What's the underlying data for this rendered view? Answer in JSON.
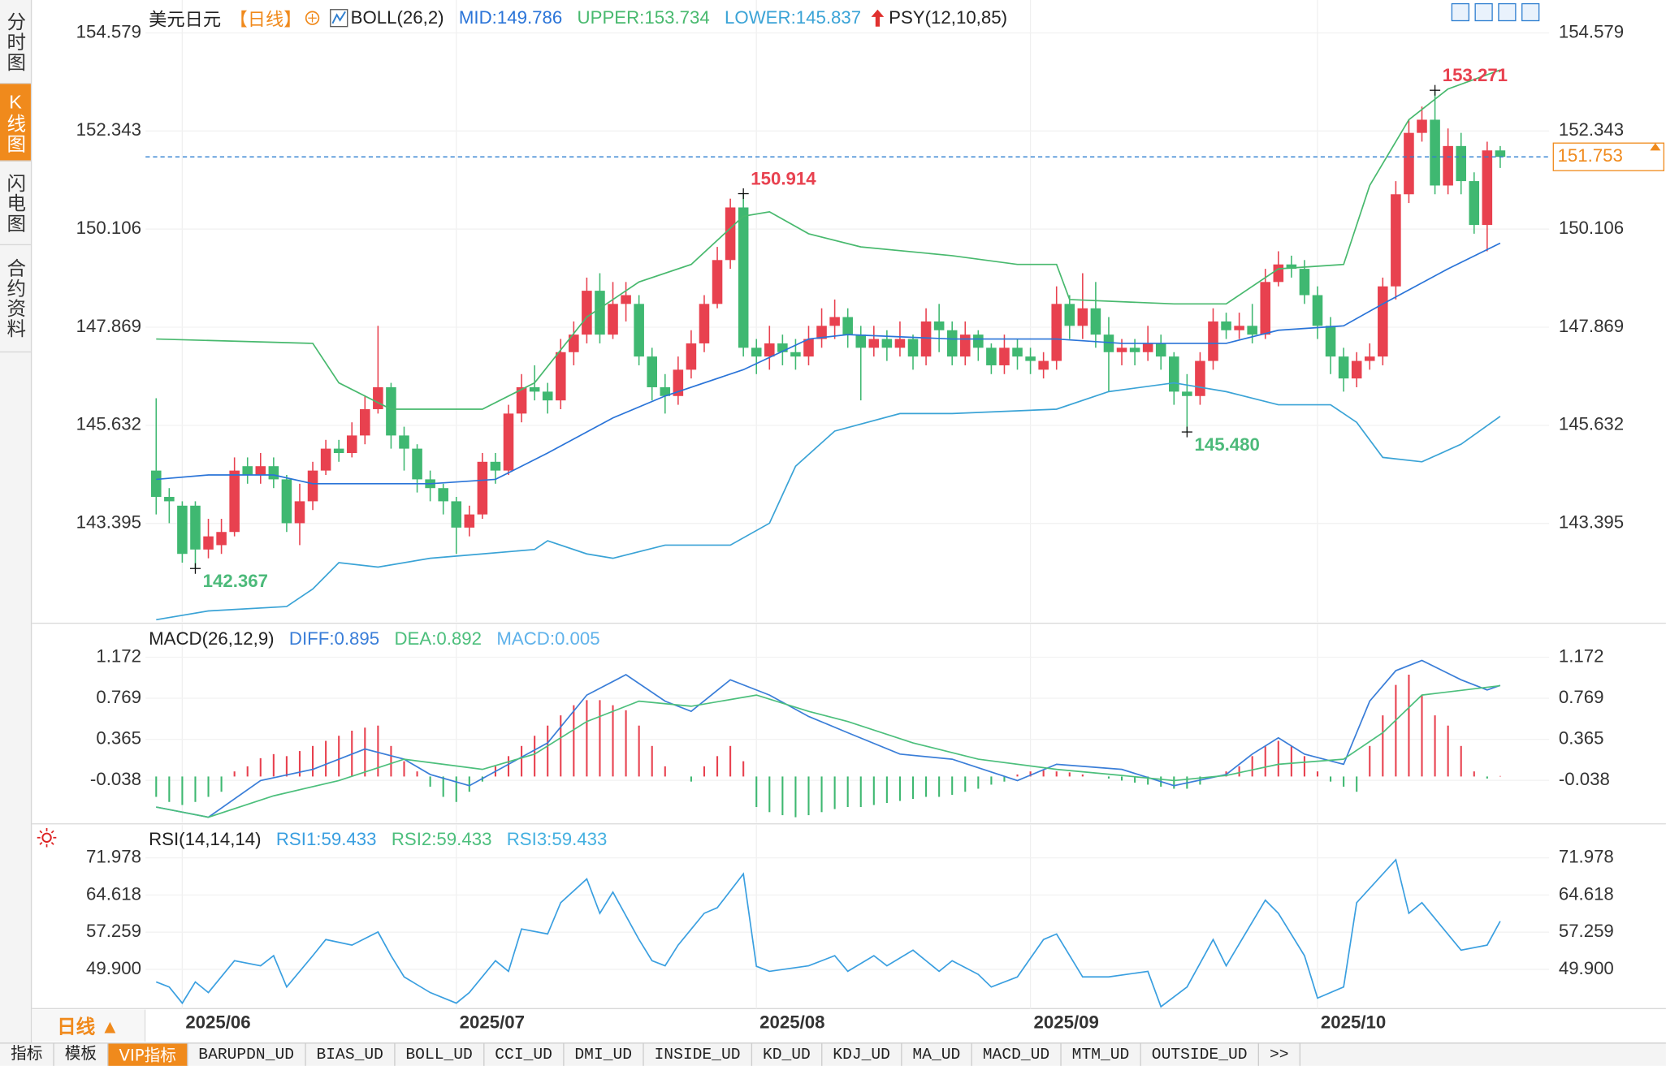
{
  "ui": {
    "sidebar_tabs": [
      "分时图",
      "K线图",
      "闪电图",
      "合约资料"
    ],
    "period_button": "日线 ▲",
    "bottom_tabs": [
      "指标",
      "模板",
      "VIP指标",
      "BARUPDN_UD",
      "BIAS_UD",
      "BOLL_UD",
      "CCI_UD",
      "DMI_UD",
      "INSIDE_UD",
      "KD_UD",
      "KDJ_UD",
      "MA_UD",
      "MACD_UD",
      "MTM_UD",
      "OUTSIDE_UD",
      ">>"
    ]
  },
  "chart_data": [
    {
      "type": "candlestick",
      "title": "美元日元",
      "period": "【日线】",
      "indicator": "BOLL(26,2)",
      "extra_indicator": "PSY(12,10,85)",
      "xlim": [
        0,
        103
      ],
      "ylim": [
        141.168,
        154.579
      ],
      "yticks": [
        154.579,
        152.343,
        150.106,
        147.869,
        145.632,
        143.395
      ],
      "up_color": "#e8414f",
      "down_color": "#3fb871",
      "candles": {
        "open": [
          144.6,
          144.0,
          143.8,
          143.8,
          142.8,
          142.9,
          143.2,
          144.7,
          144.5,
          144.7,
          144.4,
          143.4,
          143.9,
          144.6,
          145.1,
          145.0,
          145.4,
          146.0,
          146.5,
          145.4,
          145.1,
          144.4,
          144.2,
          143.9,
          143.3,
          143.6,
          144.8,
          144.6,
          145.9,
          146.5,
          146.4,
          146.2,
          147.3,
          147.7,
          148.7,
          147.7,
          148.4,
          148.4,
          147.2,
          146.5,
          146.3,
          146.9,
          147.5,
          148.4,
          149.4,
          150.6,
          147.4,
          147.2,
          147.5,
          147.3,
          147.2,
          147.6,
          147.9,
          148.1,
          147.7,
          147.4,
          147.6,
          147.4,
          147.6,
          147.2,
          148.0,
          147.8,
          147.2,
          147.7,
          147.4,
          147.0,
          147.4,
          147.2,
          146.9,
          147.1,
          148.4,
          147.9,
          148.3,
          147.7,
          147.3,
          147.4,
          147.3,
          147.5,
          147.2,
          146.4,
          146.3,
          147.1,
          148.0,
          147.8,
          147.9,
          147.7,
          148.9,
          149.3,
          149.2,
          148.6,
          147.9,
          147.2,
          146.7,
          147.1,
          147.2,
          148.8,
          150.9,
          152.3,
          152.6,
          151.1,
          152.0,
          151.2,
          150.2,
          151.9
        ],
        "high": [
          146.25,
          144.2,
          143.9,
          143.9,
          143.5,
          143.5,
          144.9,
          144.9,
          145.0,
          144.9,
          144.5,
          144.3,
          144.8,
          145.3,
          145.3,
          145.7,
          146.3,
          147.9,
          146.6,
          145.6,
          145.2,
          144.6,
          144.3,
          144.0,
          143.8,
          145.0,
          145.0,
          146.1,
          146.8,
          147.0,
          146.6,
          147.6,
          148.0,
          149.0,
          149.1,
          148.9,
          148.9,
          148.6,
          147.4,
          146.8,
          147.2,
          147.8,
          148.6,
          149.7,
          150.8,
          150.914,
          147.6,
          147.9,
          147.7,
          147.6,
          147.9,
          148.3,
          148.5,
          148.3,
          147.9,
          147.9,
          147.8,
          148.0,
          147.7,
          148.3,
          148.4,
          148.0,
          148.0,
          147.8,
          147.5,
          147.7,
          147.6,
          147.4,
          147.3,
          148.8,
          148.6,
          149.1,
          148.9,
          148.1,
          147.6,
          147.6,
          147.9,
          147.7,
          147.3,
          146.8,
          147.3,
          148.3,
          148.2,
          148.2,
          148.4,
          149.2,
          149.6,
          149.5,
          149.4,
          148.8,
          148.1,
          147.4,
          147.3,
          147.5,
          149.0,
          151.2,
          152.6,
          152.9,
          153.271,
          152.4,
          152.3,
          151.4,
          152.1,
          152.0
        ],
        "low": [
          143.6,
          143.4,
          142.5,
          142.367,
          142.6,
          142.7,
          143.1,
          144.3,
          144.3,
          144.2,
          143.2,
          142.9,
          143.7,
          144.5,
          144.8,
          144.9,
          145.2,
          145.9,
          145.1,
          144.6,
          144.1,
          143.9,
          143.6,
          142.7,
          143.1,
          143.5,
          144.3,
          144.5,
          145.7,
          146.2,
          145.9,
          146.0,
          147.0,
          147.5,
          147.5,
          147.6,
          148.0,
          147.0,
          146.2,
          145.9,
          146.1,
          146.7,
          147.3,
          148.3,
          149.2,
          147.2,
          146.8,
          146.9,
          147.0,
          146.9,
          147.0,
          147.4,
          147.6,
          147.4,
          146.2,
          147.2,
          147.1,
          147.2,
          146.9,
          147.0,
          147.3,
          147.0,
          147.0,
          147.1,
          146.8,
          146.8,
          146.9,
          146.8,
          146.7,
          146.9,
          147.6,
          147.6,
          147.4,
          146.4,
          147.0,
          147.0,
          147.1,
          146.9,
          146.1,
          145.48,
          146.1,
          146.9,
          147.6,
          147.6,
          147.5,
          147.6,
          148.8,
          149.0,
          148.4,
          147.6,
          146.8,
          146.4,
          146.5,
          146.9,
          147.0,
          148.5,
          150.7,
          152.1,
          150.9,
          150.9,
          150.9,
          150.0,
          149.6,
          151.5
        ],
        "close": [
          144.0,
          143.9,
          142.7,
          142.8,
          143.1,
          143.2,
          144.6,
          144.5,
          144.7,
          144.4,
          143.4,
          143.9,
          144.6,
          145.1,
          145.0,
          145.4,
          146.0,
          146.5,
          145.4,
          145.1,
          144.4,
          144.2,
          143.9,
          143.3,
          143.6,
          144.8,
          144.6,
          145.9,
          146.5,
          146.4,
          146.2,
          147.3,
          147.7,
          148.7,
          147.7,
          148.4,
          148.6,
          147.2,
          146.5,
          146.3,
          146.9,
          147.5,
          148.4,
          149.4,
          150.6,
          147.4,
          147.2,
          147.5,
          147.3,
          147.2,
          147.6,
          147.9,
          148.1,
          147.7,
          147.4,
          147.6,
          147.4,
          147.6,
          147.2,
          148.0,
          147.8,
          147.2,
          147.7,
          147.4,
          147.0,
          147.4,
          147.2,
          147.1,
          147.1,
          148.4,
          147.9,
          148.3,
          147.7,
          147.3,
          147.4,
          147.3,
          147.5,
          147.2,
          146.4,
          146.3,
          147.1,
          148.0,
          147.8,
          147.9,
          147.7,
          148.9,
          149.3,
          149.2,
          148.6,
          147.9,
          147.2,
          146.7,
          147.1,
          147.2,
          148.8,
          150.9,
          152.3,
          152.6,
          151.1,
          152.0,
          151.2,
          150.2,
          151.9,
          151.753
        ]
      },
      "series": [
        {
          "name": "MID:149.786",
          "color": "#2a74d8",
          "x": [
            0,
            4,
            9,
            12,
            17,
            21,
            26,
            30,
            35,
            39,
            45,
            50,
            53,
            61,
            69,
            74,
            78,
            82,
            86,
            91,
            94,
            99,
            103
          ],
          "values": [
            144.4,
            144.5,
            144.5,
            144.3,
            144.3,
            144.3,
            144.4,
            145.0,
            145.8,
            146.3,
            146.9,
            147.6,
            147.7,
            147.6,
            147.6,
            147.5,
            147.5,
            147.5,
            147.8,
            147.9,
            148.4,
            149.2,
            149.786
          ]
        },
        {
          "name": "UPPER:153.734",
          "color": "#48b96e",
          "x": [
            0,
            12,
            14,
            18,
            25,
            29,
            33,
            37,
            41,
            45,
            47,
            50,
            54,
            61,
            66,
            69,
            70,
            78,
            82,
            86,
            91,
            93,
            96,
            99,
            103
          ],
          "values": [
            147.6,
            147.5,
            146.6,
            146.0,
            146.0,
            146.6,
            148.1,
            148.9,
            149.3,
            150.4,
            150.5,
            150.0,
            149.7,
            149.5,
            149.3,
            149.3,
            148.5,
            148.4,
            148.4,
            149.2,
            149.3,
            151.1,
            152.6,
            153.3,
            153.734
          ]
        },
        {
          "name": "LOWER:145.837",
          "color": "#3aa3d6",
          "x": [
            0,
            4,
            10,
            12,
            14,
            17,
            21,
            25,
            29,
            30,
            33,
            35,
            39,
            44,
            47,
            49,
            52,
            57,
            61,
            69,
            73,
            78,
            82,
            86,
            90,
            92,
            94,
            97,
            100,
            103
          ],
          "values": [
            141.2,
            141.4,
            141.5,
            141.9,
            142.5,
            142.4,
            142.6,
            142.7,
            142.8,
            143.0,
            142.7,
            142.6,
            142.9,
            142.9,
            143.4,
            144.7,
            145.5,
            145.9,
            145.9,
            146.0,
            146.4,
            146.6,
            146.4,
            146.1,
            146.1,
            145.7,
            144.9,
            144.8,
            145.2,
            145.837
          ]
        }
      ],
      "annotations": [
        {
          "x": 45,
          "value": 150.914,
          "color": "#e8414f",
          "position": "above"
        },
        {
          "x": 3,
          "value": 142.367,
          "color": "#4cba7a",
          "position": "below"
        },
        {
          "x": 79,
          "value": 145.48,
          "label": "145.480",
          "color": "#4cba7a",
          "position": "below"
        },
        {
          "x": 98,
          "value": 153.271,
          "color": "#e8414f",
          "position": "above"
        }
      ],
      "last_price": 151.753,
      "last_price_color": "#f08a1c"
    },
    {
      "type": "combo",
      "title": "MACD(26,12,9)",
      "xlim": [
        0,
        103
      ],
      "ylim": [
        -0.455,
        1.172
      ],
      "yticks": [
        1.172,
        0.769,
        0.365,
        -0.038
      ],
      "series": [
        {
          "name": "DIFF:0.895",
          "color": "#3a7ed8",
          "x": [
            0,
            4,
            8,
            12,
            16,
            19,
            21,
            24,
            27,
            30,
            33,
            36,
            39,
            41,
            44,
            47,
            50,
            53,
            57,
            61,
            66,
            69,
            74,
            78,
            82,
            84,
            86,
            88,
            91,
            93,
            95,
            97,
            100,
            102,
            103
          ],
          "values": [
            -0.3,
            -0.4,
            -0.04,
            0.07,
            0.27,
            0.17,
            0.02,
            -0.09,
            0.12,
            0.33,
            0.8,
            1.0,
            0.74,
            0.64,
            0.95,
            0.8,
            0.59,
            0.43,
            0.22,
            0.17,
            -0.04,
            0.12,
            0.07,
            -0.09,
            0.02,
            0.22,
            0.38,
            0.22,
            0.12,
            0.74,
            1.04,
            1.14,
            0.95,
            0.85,
            0.895
          ]
        },
        {
          "name": "DEA:0.892",
          "color": "#4cbf7c",
          "x": [
            0,
            4,
            9,
            14,
            19,
            22,
            25,
            29,
            33,
            37,
            41,
            46,
            50,
            53,
            58,
            63,
            69,
            74,
            78,
            82,
            86,
            91,
            94,
            97,
            103
          ],
          "values": [
            -0.3,
            -0.4,
            -0.19,
            -0.04,
            0.17,
            0.12,
            0.07,
            0.22,
            0.54,
            0.74,
            0.69,
            0.8,
            0.64,
            0.54,
            0.33,
            0.17,
            0.07,
            0.01,
            -0.04,
            0.01,
            0.12,
            0.17,
            0.43,
            0.8,
            0.892
          ]
        },
        {
          "name": "MACD:0.005",
          "color": "#5fb2ea",
          "kind": "bar",
          "up_color": "#e8414f",
          "down_color": "#3fb871",
          "values": [
            -0.2,
            -0.25,
            -0.28,
            -0.25,
            -0.2,
            -0.15,
            0.05,
            0.1,
            0.18,
            0.22,
            0.2,
            0.25,
            0.3,
            0.35,
            0.4,
            0.45,
            0.48,
            0.5,
            0.3,
            0.15,
            0.05,
            -0.1,
            -0.2,
            -0.25,
            -0.15,
            -0.05,
            0.1,
            0.2,
            0.3,
            0.4,
            0.5,
            0.6,
            0.7,
            0.75,
            0.75,
            0.7,
            0.65,
            0.5,
            0.3,
            0.1,
            0.0,
            -0.05,
            0.1,
            0.2,
            0.3,
            0.15,
            -0.3,
            -0.35,
            -0.38,
            -0.4,
            -0.38,
            -0.35,
            -0.32,
            -0.3,
            -0.3,
            -0.28,
            -0.26,
            -0.24,
            -0.22,
            -0.2,
            -0.2,
            -0.18,
            -0.15,
            -0.12,
            -0.08,
            -0.05,
            0.02,
            0.05,
            0.06,
            0.05,
            0.04,
            0.02,
            0.0,
            -0.02,
            -0.04,
            -0.06,
            -0.08,
            -0.1,
            -0.12,
            -0.12,
            -0.08,
            0.0,
            0.05,
            0.1,
            0.2,
            0.3,
            0.35,
            0.3,
            0.2,
            0.05,
            -0.05,
            -0.1,
            -0.15,
            0.3,
            0.6,
            0.9,
            1.0,
            0.8,
            0.6,
            0.5,
            0.3,
            0.05,
            -0.02,
            0.005
          ]
        }
      ]
    },
    {
      "type": "line",
      "title": "RSI(14,14,14)",
      "xlim": [
        0,
        103
      ],
      "ylim": [
        42.12,
        71.978
      ],
      "yticks": [
        71.978,
        64.618,
        57.259,
        {
          "value": 49.9,
          "label": "49.900"
        }
      ],
      "xticks": [
        {
          "value": 2,
          "label": "2025/06"
        },
        {
          "value": 23,
          "label": "2025/07"
        },
        {
          "value": 46,
          "label": "2025/08"
        },
        {
          "value": 67,
          "label": "2025/09"
        },
        {
          "value": 89,
          "label": "2025/10"
        }
      ],
      "series": [
        {
          "name": "RSI1:59.433",
          "color": "#3a9fe0",
          "x": [
            0,
            1,
            2,
            3,
            4,
            6,
            8,
            9,
            10,
            12,
            13,
            15,
            17,
            18,
            19,
            21,
            23,
            24,
            26,
            27,
            28,
            30,
            31,
            33,
            34,
            35,
            37,
            38,
            39,
            40,
            42,
            43,
            45,
            46,
            47,
            50,
            52,
            53,
            55,
            56,
            58,
            60,
            61,
            63,
            64,
            66,
            68,
            69,
            71,
            73,
            76,
            77,
            79,
            81,
            82,
            85,
            86,
            88,
            89,
            91,
            92,
            95,
            96,
            97,
            100,
            102,
            103
          ],
          "values": [
            47.4,
            46.4,
            43.2,
            47.4,
            45.3,
            51.6,
            50.6,
            52.6,
            46.4,
            52.6,
            55.8,
            54.7,
            57.3,
            52.6,
            48.4,
            45.3,
            43.2,
            45.3,
            51.6,
            49.5,
            57.9,
            56.9,
            63.1,
            67.8,
            61.0,
            65.2,
            55.8,
            51.6,
            50.6,
            54.7,
            61.0,
            62.1,
            68.8,
            50.5,
            49.5,
            50.6,
            52.6,
            49.5,
            52.6,
            50.6,
            53.7,
            49.5,
            51.6,
            48.9,
            46.4,
            48.4,
            55.8,
            56.9,
            48.4,
            48.4,
            49.5,
            42.5,
            46.4,
            55.8,
            50.6,
            63.6,
            61.0,
            52.6,
            44.2,
            46.4,
            63.1,
            71.6,
            61.0,
            63.1,
            53.7,
            54.7,
            59.433
          ]
        },
        {
          "name": "RSI2:59.433",
          "color": "#4cbf7c"
        },
        {
          "name": "RSI3:59.433",
          "color": "#44b0e0"
        }
      ]
    }
  ]
}
